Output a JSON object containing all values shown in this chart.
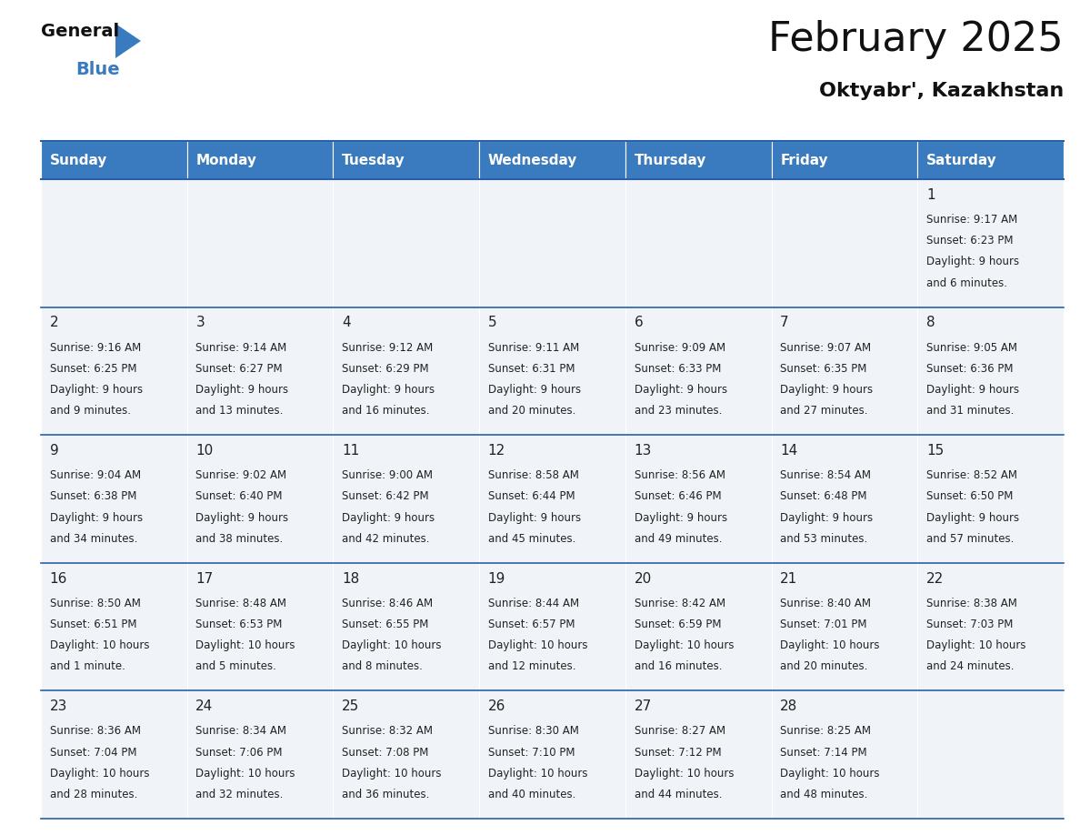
{
  "title": "February 2025",
  "subtitle": "Oktyabr', Kazakhstan",
  "header_bg": "#3a7bbf",
  "header_text": "#ffffff",
  "cell_bg": "#f0f4f8",
  "border_color": "#2a5fa5",
  "day_names": [
    "Sunday",
    "Monday",
    "Tuesday",
    "Wednesday",
    "Thursday",
    "Friday",
    "Saturday"
  ],
  "days": [
    {
      "day": 1,
      "col": 6,
      "row": 0,
      "sunrise": "9:17 AM",
      "sunset": "6:23 PM",
      "daylight_line1": "Daylight: 9 hours",
      "daylight_line2": "and 6 minutes."
    },
    {
      "day": 2,
      "col": 0,
      "row": 1,
      "sunrise": "9:16 AM",
      "sunset": "6:25 PM",
      "daylight_line1": "Daylight: 9 hours",
      "daylight_line2": "and 9 minutes."
    },
    {
      "day": 3,
      "col": 1,
      "row": 1,
      "sunrise": "9:14 AM",
      "sunset": "6:27 PM",
      "daylight_line1": "Daylight: 9 hours",
      "daylight_line2": "and 13 minutes."
    },
    {
      "day": 4,
      "col": 2,
      "row": 1,
      "sunrise": "9:12 AM",
      "sunset": "6:29 PM",
      "daylight_line1": "Daylight: 9 hours",
      "daylight_line2": "and 16 minutes."
    },
    {
      "day": 5,
      "col": 3,
      "row": 1,
      "sunrise": "9:11 AM",
      "sunset": "6:31 PM",
      "daylight_line1": "Daylight: 9 hours",
      "daylight_line2": "and 20 minutes."
    },
    {
      "day": 6,
      "col": 4,
      "row": 1,
      "sunrise": "9:09 AM",
      "sunset": "6:33 PM",
      "daylight_line1": "Daylight: 9 hours",
      "daylight_line2": "and 23 minutes."
    },
    {
      "day": 7,
      "col": 5,
      "row": 1,
      "sunrise": "9:07 AM",
      "sunset": "6:35 PM",
      "daylight_line1": "Daylight: 9 hours",
      "daylight_line2": "and 27 minutes."
    },
    {
      "day": 8,
      "col": 6,
      "row": 1,
      "sunrise": "9:05 AM",
      "sunset": "6:36 PM",
      "daylight_line1": "Daylight: 9 hours",
      "daylight_line2": "and 31 minutes."
    },
    {
      "day": 9,
      "col": 0,
      "row": 2,
      "sunrise": "9:04 AM",
      "sunset": "6:38 PM",
      "daylight_line1": "Daylight: 9 hours",
      "daylight_line2": "and 34 minutes."
    },
    {
      "day": 10,
      "col": 1,
      "row": 2,
      "sunrise": "9:02 AM",
      "sunset": "6:40 PM",
      "daylight_line1": "Daylight: 9 hours",
      "daylight_line2": "and 38 minutes."
    },
    {
      "day": 11,
      "col": 2,
      "row": 2,
      "sunrise": "9:00 AM",
      "sunset": "6:42 PM",
      "daylight_line1": "Daylight: 9 hours",
      "daylight_line2": "and 42 minutes."
    },
    {
      "day": 12,
      "col": 3,
      "row": 2,
      "sunrise": "8:58 AM",
      "sunset": "6:44 PM",
      "daylight_line1": "Daylight: 9 hours",
      "daylight_line2": "and 45 minutes."
    },
    {
      "day": 13,
      "col": 4,
      "row": 2,
      "sunrise": "8:56 AM",
      "sunset": "6:46 PM",
      "daylight_line1": "Daylight: 9 hours",
      "daylight_line2": "and 49 minutes."
    },
    {
      "day": 14,
      "col": 5,
      "row": 2,
      "sunrise": "8:54 AM",
      "sunset": "6:48 PM",
      "daylight_line1": "Daylight: 9 hours",
      "daylight_line2": "and 53 minutes."
    },
    {
      "day": 15,
      "col": 6,
      "row": 2,
      "sunrise": "8:52 AM",
      "sunset": "6:50 PM",
      "daylight_line1": "Daylight: 9 hours",
      "daylight_line2": "and 57 minutes."
    },
    {
      "day": 16,
      "col": 0,
      "row": 3,
      "sunrise": "8:50 AM",
      "sunset": "6:51 PM",
      "daylight_line1": "Daylight: 10 hours",
      "daylight_line2": "and 1 minute."
    },
    {
      "day": 17,
      "col": 1,
      "row": 3,
      "sunrise": "8:48 AM",
      "sunset": "6:53 PM",
      "daylight_line1": "Daylight: 10 hours",
      "daylight_line2": "and 5 minutes."
    },
    {
      "day": 18,
      "col": 2,
      "row": 3,
      "sunrise": "8:46 AM",
      "sunset": "6:55 PM",
      "daylight_line1": "Daylight: 10 hours",
      "daylight_line2": "and 8 minutes."
    },
    {
      "day": 19,
      "col": 3,
      "row": 3,
      "sunrise": "8:44 AM",
      "sunset": "6:57 PM",
      "daylight_line1": "Daylight: 10 hours",
      "daylight_line2": "and 12 minutes."
    },
    {
      "day": 20,
      "col": 4,
      "row": 3,
      "sunrise": "8:42 AM",
      "sunset": "6:59 PM",
      "daylight_line1": "Daylight: 10 hours",
      "daylight_line2": "and 16 minutes."
    },
    {
      "day": 21,
      "col": 5,
      "row": 3,
      "sunrise": "8:40 AM",
      "sunset": "7:01 PM",
      "daylight_line1": "Daylight: 10 hours",
      "daylight_line2": "and 20 minutes."
    },
    {
      "day": 22,
      "col": 6,
      "row": 3,
      "sunrise": "8:38 AM",
      "sunset": "7:03 PM",
      "daylight_line1": "Daylight: 10 hours",
      "daylight_line2": "and 24 minutes."
    },
    {
      "day": 23,
      "col": 0,
      "row": 4,
      "sunrise": "8:36 AM",
      "sunset": "7:04 PM",
      "daylight_line1": "Daylight: 10 hours",
      "daylight_line2": "and 28 minutes."
    },
    {
      "day": 24,
      "col": 1,
      "row": 4,
      "sunrise": "8:34 AM",
      "sunset": "7:06 PM",
      "daylight_line1": "Daylight: 10 hours",
      "daylight_line2": "and 32 minutes."
    },
    {
      "day": 25,
      "col": 2,
      "row": 4,
      "sunrise": "8:32 AM",
      "sunset": "7:08 PM",
      "daylight_line1": "Daylight: 10 hours",
      "daylight_line2": "and 36 minutes."
    },
    {
      "day": 26,
      "col": 3,
      "row": 4,
      "sunrise": "8:30 AM",
      "sunset": "7:10 PM",
      "daylight_line1": "Daylight: 10 hours",
      "daylight_line2": "and 40 minutes."
    },
    {
      "day": 27,
      "col": 4,
      "row": 4,
      "sunrise": "8:27 AM",
      "sunset": "7:12 PM",
      "daylight_line1": "Daylight: 10 hours",
      "daylight_line2": "and 44 minutes."
    },
    {
      "day": 28,
      "col": 5,
      "row": 4,
      "sunrise": "8:25 AM",
      "sunset": "7:14 PM",
      "daylight_line1": "Daylight: 10 hours",
      "daylight_line2": "and 48 minutes."
    }
  ],
  "num_rows": 5,
  "fig_width": 11.88,
  "fig_height": 9.18,
  "title_fontsize": 32,
  "subtitle_fontsize": 16,
  "header_fontsize": 11,
  "day_num_fontsize": 11,
  "cell_text_fontsize": 8.5
}
